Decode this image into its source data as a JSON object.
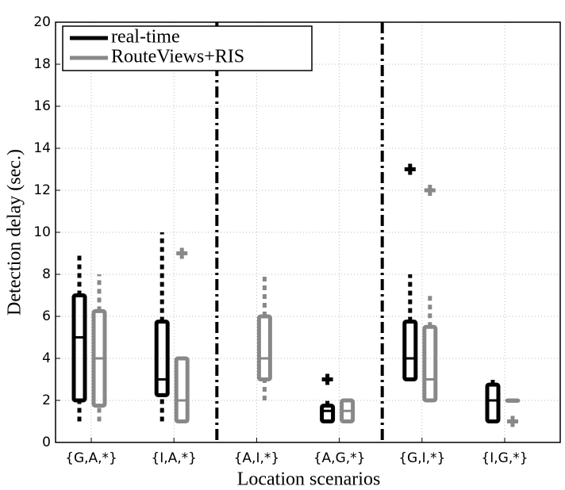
{
  "chart_data": {
    "type": "box",
    "x_label": "Location scenarios",
    "y_label": "Detection delay (sec.)",
    "categories": [
      "{G,A,*}",
      "{I,A,*}",
      "{A,I,*}",
      "{A,G,*}",
      "{G,I,*}",
      "{I,G,*}"
    ],
    "ylim": [
      0,
      20
    ],
    "yticks": [
      0,
      2,
      4,
      6,
      8,
      10,
      12,
      14,
      16,
      18,
      20
    ],
    "grid": true,
    "legend": "top-left",
    "series": [
      {
        "name": "real-time",
        "color": "#000000",
        "boxes": [
          {
            "min": 1,
            "q1": 2,
            "median": 5,
            "q3": 7,
            "max": 9,
            "outliers": []
          },
          {
            "min": 1,
            "q1": 2.25,
            "median": 3,
            "q3": 5.75,
            "max": 10,
            "outliers": []
          },
          null,
          {
            "min": 1,
            "q1": 1,
            "median": 1.5,
            "q3": 1.75,
            "max": 2,
            "outliers": [
              3
            ]
          },
          {
            "min": 3,
            "q1": 3,
            "median": 4,
            "q3": 5.75,
            "max": 8,
            "outliers": [
              13
            ]
          },
          {
            "min": 1,
            "q1": 1,
            "median": 2,
            "q3": 2.75,
            "max": 3,
            "outliers": []
          }
        ]
      },
      {
        "name": "RouteViews+RIS",
        "color": "#888888",
        "boxes": [
          {
            "min": 1,
            "q1": 1.75,
            "median": 4,
            "q3": 6.25,
            "max": 8,
            "outliers": []
          },
          {
            "min": 1,
            "q1": 1,
            "median": 2,
            "q3": 4,
            "max": 4,
            "outliers": [
              9
            ]
          },
          {
            "min": 2,
            "q1": 3,
            "median": 4,
            "q3": 6,
            "max": 8,
            "outliers": []
          },
          {
            "min": 1,
            "q1": 1,
            "median": 1.5,
            "q3": 2,
            "max": 2,
            "outliers": []
          },
          {
            "min": 2,
            "q1": 2,
            "median": 3,
            "q3": 5.5,
            "max": 7,
            "outliers": [
              12
            ]
          },
          {
            "min": 2,
            "q1": 2,
            "median": 2,
            "q3": 2,
            "max": 2,
            "outliers": [
              1
            ]
          }
        ]
      }
    ]
  }
}
